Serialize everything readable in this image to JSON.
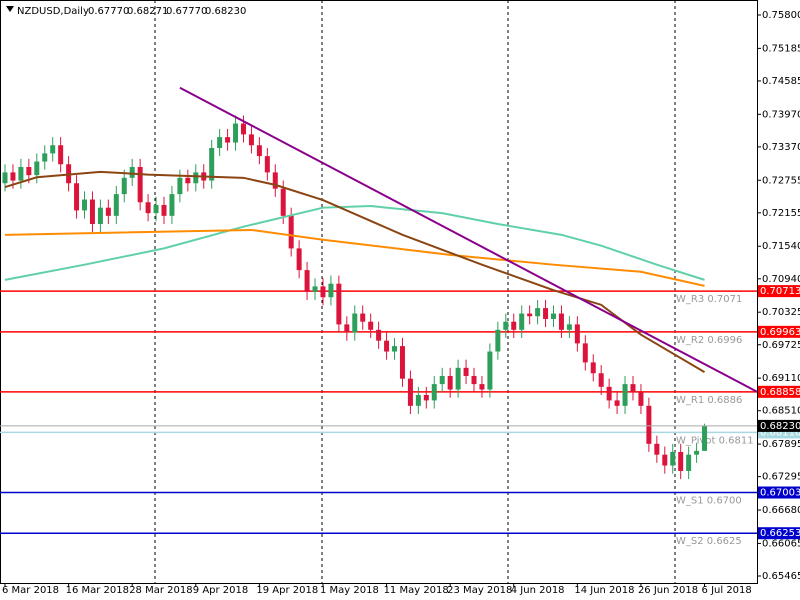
{
  "chart_data": {
    "type": "candlestick",
    "header": {
      "symbol": "NZDUSD,Daily",
      "ohlc": [
        "0.67770",
        "0.68271",
        "0.67770",
        "0.68230"
      ]
    },
    "ylim": [
      0.65336,
      0.76076
    ],
    "xlim": [
      -0.63,
      94.6
    ],
    "yticks": [
      {
        "value": 0.758,
        "label": "0.75800"
      },
      {
        "value": 0.75185,
        "label": "0.75185"
      },
      {
        "value": 0.74585,
        "label": "0.74585"
      },
      {
        "value": 0.7397,
        "label": "0.73970"
      },
      {
        "value": 0.7337,
        "label": "0.73370"
      },
      {
        "value": 0.72755,
        "label": "0.72755"
      },
      {
        "value": 0.72155,
        "label": "0.72155"
      },
      {
        "value": 0.7154,
        "label": "0.71540"
      },
      {
        "value": 0.7094,
        "label": "0.70940"
      },
      {
        "value": 0.70325,
        "label": "0.70325"
      },
      {
        "value": 0.69725,
        "label": "0.69725"
      },
      {
        "value": 0.6911,
        "label": "0.69110"
      },
      {
        "value": 0.6851,
        "label": "0.68510"
      },
      {
        "value": 0.67895,
        "label": "0.67895"
      },
      {
        "value": 0.67295,
        "label": "0.67295"
      },
      {
        "value": 0.6668,
        "label": "0.66680"
      },
      {
        "value": 0.66065,
        "label": "0.66065"
      },
      {
        "value": 0.65465,
        "label": "0.65465"
      }
    ],
    "xticks": [
      {
        "value": 0,
        "label": "6 Mar 2018"
      },
      {
        "value": 8,
        "label": "16 Mar 2018"
      },
      {
        "value": 16,
        "label": "28 Mar 2018"
      },
      {
        "value": 24,
        "label": "9 Apr 2018"
      },
      {
        "value": 32,
        "label": "19 Apr 2018"
      },
      {
        "value": 40,
        "label": "1 May 2018"
      },
      {
        "value": 48,
        "label": "11 May 2018"
      },
      {
        "value": 56,
        "label": "23 May 2018"
      },
      {
        "value": 64,
        "label": "4 Jun 2018"
      },
      {
        "value": 72,
        "label": "14 Jun 2018"
      },
      {
        "value": 80,
        "label": "26 Jun 2018"
      },
      {
        "value": 88,
        "label": "6 Jul 2018"
      }
    ],
    "bull_color": "#2e9e5b",
    "bear_color": "#dc143c",
    "candles": {
      "open": [
        0.727,
        0.729,
        0.7275,
        0.73,
        0.7285,
        0.731,
        0.7325,
        0.734,
        0.7305,
        0.727,
        0.722,
        0.724,
        0.7195,
        0.7225,
        0.721,
        0.725,
        0.728,
        0.73,
        0.7235,
        0.7215,
        0.723,
        0.721,
        0.725,
        0.728,
        0.727,
        0.729,
        0.7275,
        0.7335,
        0.7355,
        0.7345,
        0.738,
        0.736,
        0.734,
        0.732,
        0.729,
        0.726,
        0.721,
        0.715,
        0.711,
        0.707,
        0.708,
        0.706,
        0.7085,
        0.701,
        0.6995,
        0.703,
        0.7015,
        0.7,
        0.698,
        0.696,
        0.697,
        0.691,
        0.686,
        0.688,
        0.687,
        0.69,
        0.6915,
        0.689,
        0.693,
        0.6915,
        0.69,
        0.689,
        0.696,
        0.7,
        0.7015,
        0.7,
        0.703,
        0.7025,
        0.704,
        0.702,
        0.703,
        0.7,
        0.701,
        0.6975,
        0.694,
        0.692,
        0.6895,
        0.687,
        0.686,
        0.69,
        0.6885,
        0.686,
        0.679,
        0.677,
        0.675,
        0.6775,
        0.674,
        0.677,
        0.6777
      ],
      "high": [
        0.7305,
        0.7305,
        0.7315,
        0.7315,
        0.7325,
        0.734,
        0.7355,
        0.7355,
        0.732,
        0.7285,
        0.7255,
        0.7255,
        0.724,
        0.724,
        0.7265,
        0.7295,
        0.7315,
        0.7315,
        0.725,
        0.7245,
        0.7245,
        0.7265,
        0.7295,
        0.7295,
        0.7305,
        0.7305,
        0.735,
        0.737,
        0.737,
        0.7395,
        0.7395,
        0.7375,
        0.7355,
        0.7335,
        0.7305,
        0.7275,
        0.7225,
        0.7165,
        0.7125,
        0.7095,
        0.7095,
        0.71,
        0.71,
        0.7025,
        0.7045,
        0.7045,
        0.703,
        0.7015,
        0.6995,
        0.6985,
        0.6985,
        0.6925,
        0.6895,
        0.6895,
        0.6915,
        0.693,
        0.693,
        0.6945,
        0.6945,
        0.693,
        0.6915,
        0.6975,
        0.7015,
        0.703,
        0.703,
        0.7045,
        0.7045,
        0.7055,
        0.7055,
        0.7045,
        0.7045,
        0.7025,
        0.7025,
        0.699,
        0.6955,
        0.6935,
        0.691,
        0.6885,
        0.6915,
        0.6915,
        0.69,
        0.6875,
        0.6805,
        0.6785,
        0.679,
        0.679,
        0.6785,
        0.6792,
        0.68271
      ],
      "low": [
        0.7255,
        0.726,
        0.726,
        0.727,
        0.727,
        0.7295,
        0.731,
        0.729,
        0.7255,
        0.7205,
        0.7205,
        0.718,
        0.718,
        0.7195,
        0.7195,
        0.7235,
        0.7265,
        0.722,
        0.72,
        0.72,
        0.7195,
        0.7195,
        0.7235,
        0.7255,
        0.7255,
        0.726,
        0.726,
        0.732,
        0.733,
        0.733,
        0.7345,
        0.7325,
        0.7305,
        0.7275,
        0.7245,
        0.7195,
        0.7135,
        0.7095,
        0.7055,
        0.7055,
        0.7045,
        0.7045,
        0.6995,
        0.698,
        0.698,
        0.7,
        0.6985,
        0.6965,
        0.6945,
        0.6945,
        0.6895,
        0.6845,
        0.6845,
        0.6855,
        0.6855,
        0.6885,
        0.6875,
        0.6875,
        0.69,
        0.6885,
        0.6875,
        0.6875,
        0.6945,
        0.6985,
        0.6985,
        0.6985,
        0.701,
        0.701,
        0.7005,
        0.7005,
        0.6985,
        0.6985,
        0.696,
        0.6925,
        0.6905,
        0.688,
        0.6855,
        0.6845,
        0.6845,
        0.687,
        0.6845,
        0.6775,
        0.6755,
        0.6735,
        0.6735,
        0.6725,
        0.6725,
        0.6755,
        0.6777
      ],
      "close": [
        0.729,
        0.7275,
        0.73,
        0.7285,
        0.731,
        0.7325,
        0.734,
        0.7305,
        0.727,
        0.722,
        0.724,
        0.7195,
        0.7225,
        0.721,
        0.725,
        0.728,
        0.73,
        0.7235,
        0.7215,
        0.723,
        0.721,
        0.725,
        0.728,
        0.727,
        0.729,
        0.7275,
        0.7335,
        0.7355,
        0.7345,
        0.738,
        0.736,
        0.734,
        0.732,
        0.729,
        0.726,
        0.721,
        0.715,
        0.711,
        0.707,
        0.708,
        0.706,
        0.7085,
        0.701,
        0.6995,
        0.703,
        0.7015,
        0.7,
        0.698,
        0.696,
        0.697,
        0.691,
        0.686,
        0.688,
        0.687,
        0.69,
        0.6915,
        0.689,
        0.693,
        0.6915,
        0.69,
        0.689,
        0.696,
        0.7,
        0.7015,
        0.7,
        0.703,
        0.7025,
        0.704,
        0.702,
        0.703,
        0.7,
        0.701,
        0.6975,
        0.694,
        0.692,
        0.6895,
        0.687,
        0.686,
        0.69,
        0.6885,
        0.686,
        0.679,
        0.677,
        0.675,
        0.6775,
        0.674,
        0.677,
        0.6777,
        0.6823
      ]
    },
    "lines": [
      {
        "color": "#5fd0a8",
        "x": [
          0,
          10,
          20,
          30,
          40,
          46,
          55,
          62,
          70,
          75,
          82,
          88
        ],
        "values": [
          0.7092,
          0.712,
          0.715,
          0.719,
          0.7225,
          0.7228,
          0.7215,
          0.7195,
          0.7175,
          0.7155,
          0.712,
          0.7092
        ]
      },
      {
        "color": "#ff8c00",
        "x": [
          0,
          31,
          40,
          56,
          69,
          80,
          88
        ],
        "values": [
          0.7175,
          0.7184,
          0.7166,
          0.7138,
          0.712,
          0.7107,
          0.7081
        ]
      },
      {
        "color": "#8b4513",
        "x": [
          0,
          4,
          12,
          18,
          30,
          34,
          40,
          50,
          60,
          69,
          75,
          80,
          88
        ],
        "values": [
          0.7263,
          0.7281,
          0.7291,
          0.7286,
          0.728,
          0.7267,
          0.7239,
          0.7175,
          0.712,
          0.7073,
          0.7046,
          0.6991,
          0.6922
        ]
      },
      {
        "color": "#8b008b",
        "x": [
          22,
          94.6
        ],
        "values": [
          0.7446,
          0.6886
        ]
      }
    ],
    "levels": [
      {
        "value": 0.70713,
        "label": "W_R3 0.7071",
        "price_label": "0.70713",
        "color": "#ff0000"
      },
      {
        "value": 0.69963,
        "label": "W_R2 0.6996",
        "price_label": "0.69963",
        "color": "#ff0000"
      },
      {
        "value": 0.68858,
        "label": "W_R1 0.6886",
        "price_label": "0.68858",
        "color": "#ff0000"
      },
      {
        "value": 0.6811,
        "label": "W_Pivot 0.6811",
        "price_label": "0.68110",
        "color": "#a8d8e0"
      },
      {
        "value": 0.67003,
        "label": "W_S1 0.6700",
        "price_label": "0.67003",
        "color": "#0000cd"
      },
      {
        "value": 0.66253,
        "label": "W_S2 0.6625",
        "price_label": "0.66253",
        "color": "#0000cd"
      }
    ]
  }
}
